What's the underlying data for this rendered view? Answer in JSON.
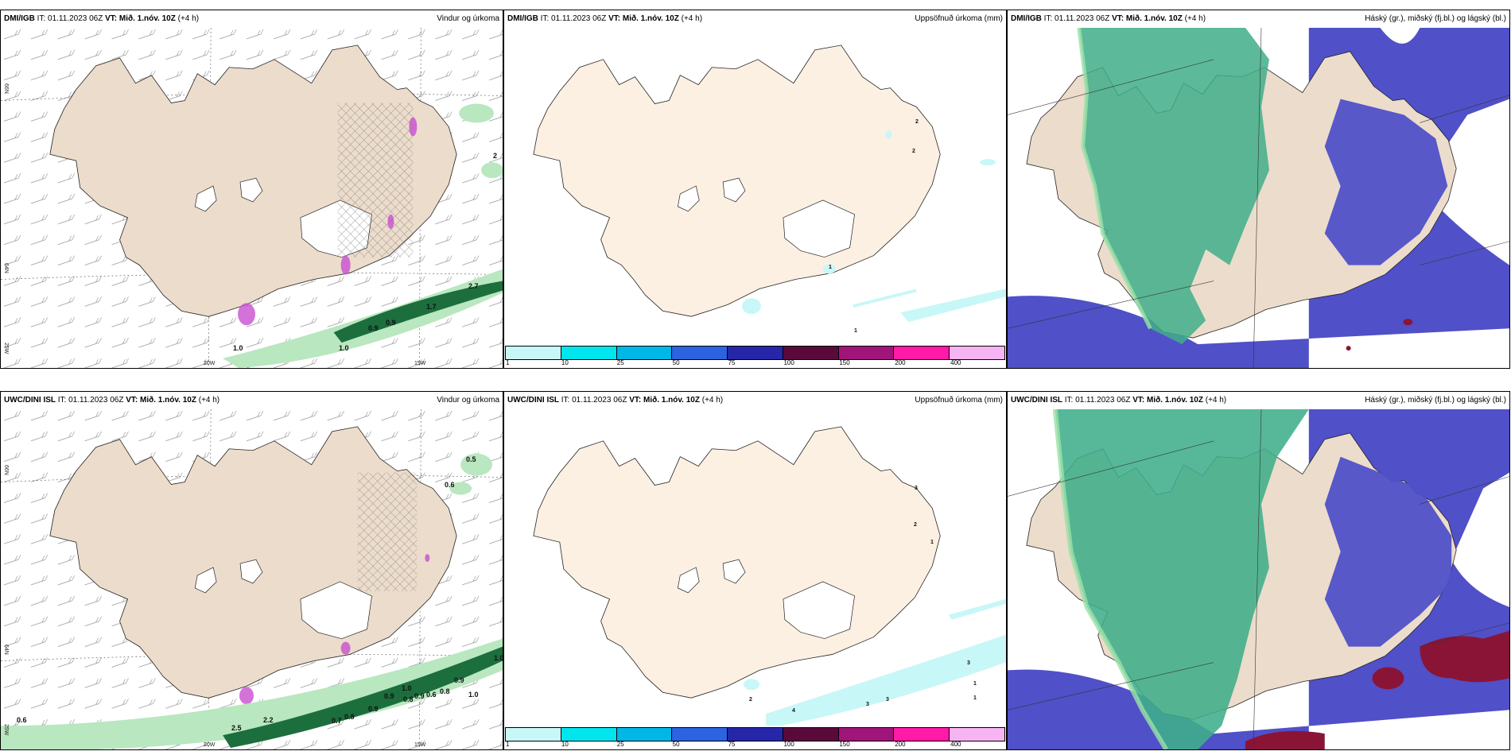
{
  "panels": [
    {
      "source": "DMI/IGB",
      "it_label": "IT:",
      "it_time": "01.11.2023 06Z",
      "vt_prefix": "VT:",
      "vt_time": "Mið. 1.nóv. 10Z",
      "lead": "(+4 h)",
      "title": "Vindur og úrkoma"
    },
    {
      "source": "DMI/IGB",
      "it_label": "IT:",
      "it_time": "01.11.2023 06Z",
      "vt_prefix": "VT:",
      "vt_time": "Mið. 1.nóv. 10Z",
      "lead": "(+4 h)",
      "title": "Uppsöfnuð úrkoma (mm)"
    },
    {
      "source": "DMI/IGB",
      "it_label": "IT:",
      "it_time": "01.11.2023 06Z",
      "vt_prefix": "VT:",
      "vt_time": "Mið. 1.nóv. 10Z",
      "lead": "(+4 h)",
      "title": "Háský (gr.), miðský (fj.bl.) og lágský (bl.)"
    },
    {
      "source": "UWC/DINI ISL",
      "it_label": "IT:",
      "it_time": "01.11.2023 06Z",
      "vt_prefix": "VT:",
      "vt_time": "Mið. 1.nóv. 10Z",
      "lead": "(+4 h)",
      "title": "Vindur og úrkoma"
    },
    {
      "source": "UWC/DINI ISL",
      "it_label": "IT:",
      "it_time": "01.11.2023 06Z",
      "vt_prefix": "VT:",
      "vt_time": "Mið. 1.nóv. 10Z",
      "lead": "(+4 h)",
      "title": "Uppsöfnuð úrkoma (mm)"
    },
    {
      "source": "UWC/DINI ISL",
      "it_label": "IT:",
      "it_time": "01.11.2023 06Z",
      "vt_prefix": "VT:",
      "vt_time": "Mið. 1.nóv. 10Z",
      "lead": "(+4 h)",
      "title": "Háský (gr.), miðský (fj.bl.) og lágský (bl.)"
    }
  ],
  "axis_labels": {
    "lon_20w": "20W",
    "lon_15w": "15W",
    "lat_66n": "66N",
    "lat_64n": "64N",
    "lon_25w": "25W"
  },
  "colorbar": {
    "ticks": [
      "1",
      "10",
      "25",
      "50",
      "75",
      "100",
      "150",
      "200",
      "400"
    ],
    "colors": [
      "#c8f7f7",
      "#00e5ee",
      "#00b7e8",
      "#2b63e0",
      "#2626a8",
      "#5a0a3a",
      "#a0157a",
      "#ff1aa8",
      "#f7b4f2"
    ]
  },
  "contour_labels": {
    "top_wind": [
      "1.0",
      "1.0",
      "0.9",
      "0.9",
      "1.7",
      "2.7",
      "2"
    ],
    "bottom_wind": [
      "0.5",
      "0.6",
      "0.6",
      "2.5",
      "2.2",
      "0.7",
      "0.8",
      "0.9",
      "0.9",
      "1.0",
      "0.8",
      "0.9",
      "0.6",
      "0.8",
      "1.0",
      "0.9",
      "1.0"
    ],
    "top_precip": [
      "2",
      "2",
      "1",
      "1"
    ],
    "bottom_precip": [
      "3",
      "2",
      "1",
      "3",
      "1",
      "1",
      "3",
      "3",
      "4",
      "2"
    ]
  },
  "colors": {
    "land": "#ecdccb",
    "land_precip": "#fcf0e2",
    "green_light": "#b9e7c0",
    "green_dark": "#1c6e3d",
    "hatch": "#777777",
    "purple": "#c84fd0",
    "high_cloud": "#3fae8a",
    "mid_cloud": "#5959c8",
    "low_cloud": "#3d4fd6",
    "deep": "#8a1436"
  }
}
